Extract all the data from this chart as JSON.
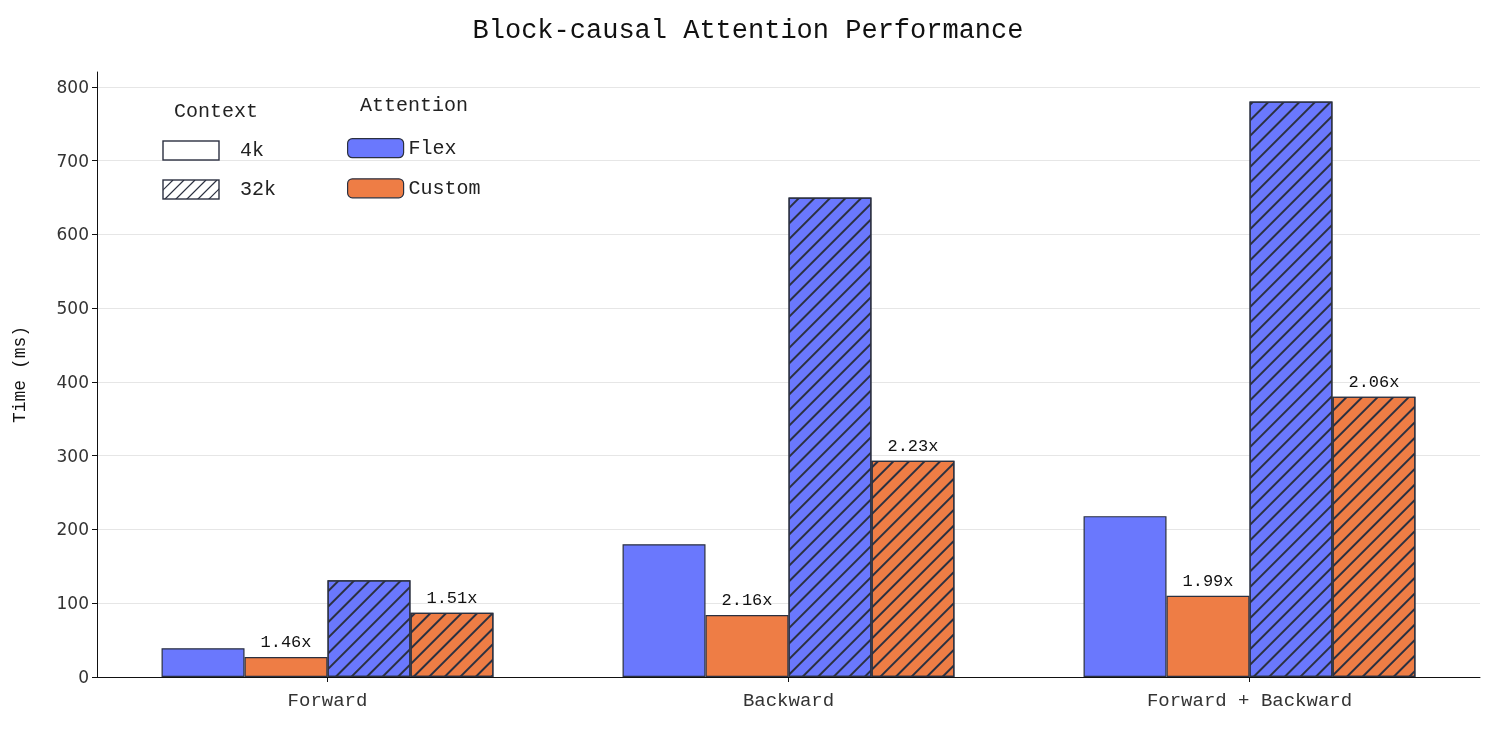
{
  "chart_data": {
    "type": "bar",
    "title": "Block-causal Attention Performance",
    "ylabel": "Time (ms)",
    "categories": [
      "Forward",
      "Backward",
      "Forward + Backward"
    ],
    "series": [
      {
        "name": "Flex",
        "color": "#6a78fd",
        "values": [
          39,
          180,
          218
        ]
      },
      {
        "name": "Custom",
        "color": "#ee7d45",
        "values": [
          27,
          84,
          110
        ]
      },
      {
        "color": "#6a78fd",
        "values": [
          131,
          650,
          780
        ]
      },
      {
        "color": "#ee7d45",
        "values": [
          87,
          293,
          380
        ]
      }
    ],
    "legend_title": "Attention",
    "legend": "top left",
    "annotations": [
      "Context",
      "4k",
      "32k",
      "1.46x",
      "1.51x",
      "2.16x",
      "2.23x",
      "1.99x",
      "2.06x"
    ],
    "ylim": [
      0,
      820
    ],
    "yticks": [
      0,
      100,
      200,
      300,
      400,
      500,
      600,
      700,
      800
    ],
    "grid": "y"
  }
}
